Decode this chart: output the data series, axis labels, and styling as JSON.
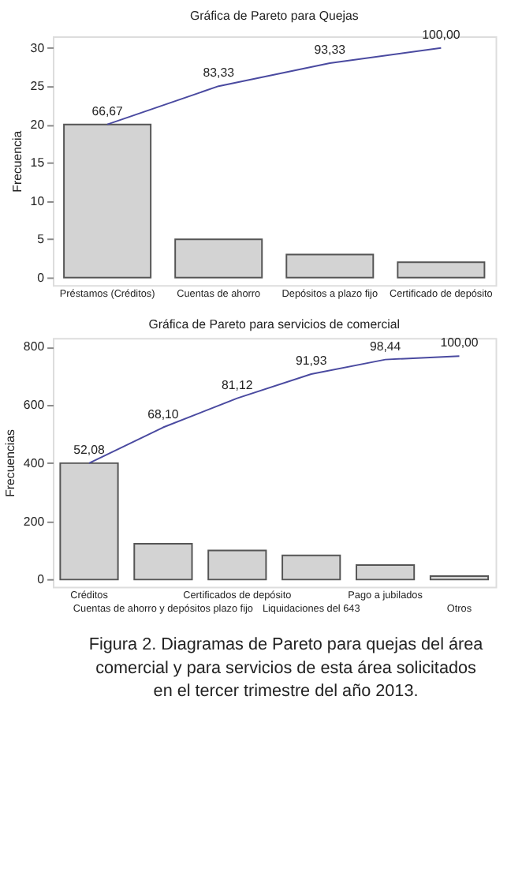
{
  "chart_data": [
    {
      "type": "bar",
      "title": "Gráfica de Pareto para Quejas",
      "ylabel": "Frecuencia",
      "categories": [
        "Préstamos (Créditos)",
        "Cuentas de ahorro",
        "Depósitos a plazo fijo",
        "Certificado de depósito"
      ],
      "series": [
        {
          "color": "#d3d3d3",
          "values": [
            20,
            5,
            3,
            2
          ]
        },
        {
          "type": "line",
          "axis": "y2",
          "color": "#4a4aa0",
          "values": [
            66.67,
            83.33,
            93.33,
            100.0
          ],
          "value_labels": [
            "66,67",
            "83,33",
            "93,33",
            "100,00"
          ]
        }
      ],
      "ylim": [
        -1,
        31.5
      ],
      "yticks": [
        0,
        5,
        10,
        15,
        20,
        25,
        30
      ],
      "y2lim": [
        -3.33,
        105
      ],
      "grid": false
    },
    {
      "type": "bar",
      "title": "Gráfica de Pareto para servicios de comercial",
      "ylabel": "Frecuencias",
      "categories": [
        "Créditos",
        "Cuentas de ahorro y depósitos plazo fijo",
        "Certificados de depósito",
        "Liquidaciones del 643",
        "Pago a jubilados",
        "Otros"
      ],
      "series": [
        {
          "color": "#d3d3d3",
          "values": [
            400,
            123,
            100,
            83,
            50,
            12
          ]
        },
        {
          "type": "line",
          "axis": "y2",
          "color": "#4a4aa0",
          "values": [
            52.08,
            68.1,
            81.12,
            91.93,
            98.44,
            100.0
          ],
          "value_labels": [
            "52,08",
            "68,10",
            "81,12",
            "91,93",
            "98,44",
            "100,00"
          ]
        }
      ],
      "ylim": [
        -25,
        830
      ],
      "yticks": [
        0,
        200,
        400,
        600,
        800
      ],
      "y2lim": [
        -3.26,
        108.07
      ],
      "grid": false,
      "annotations": [
        "Figura 2. Diagramas de Pareto para quejas del área comercial y para servicios de esta área solicitados en el tercer trimestre del año 2013."
      ]
    }
  ]
}
